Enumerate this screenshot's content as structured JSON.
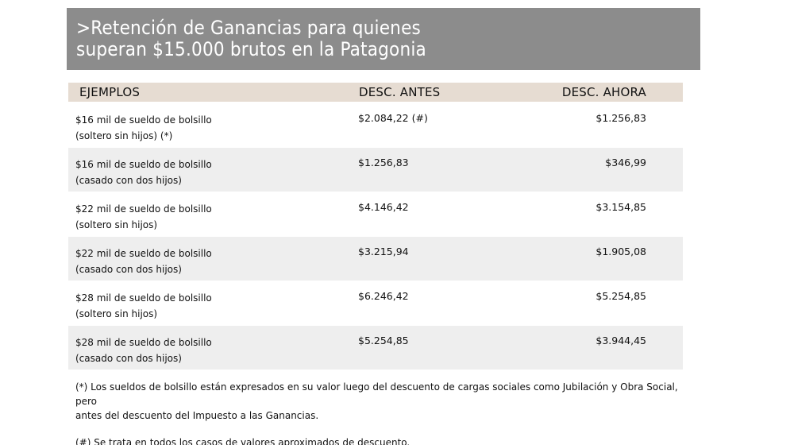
{
  "title": {
    "line1": ">Retención de Ganancias para quienes",
    "line2": "superan $15.000 brutos en la Patagonia"
  },
  "table": {
    "headers": {
      "ejemplos": "EJEMPLOS",
      "antes": "DESC. ANTES",
      "ahora": "DESC. AHORA"
    },
    "rows": [
      {
        "label1": "$16 mil de sueldo de bolsillo",
        "label2": "(soltero sin hijos) (*)",
        "antes": "$2.084,22 (#)",
        "ahora": "$1.256,83"
      },
      {
        "label1": "$16 mil de sueldo de bolsillo",
        "label2": "(casado con dos hijos)",
        "antes": "$1.256,83",
        "ahora": "$346,99"
      },
      {
        "label1": "$22 mil de sueldo de bolsillo",
        "label2": "(soltero sin hijos)",
        "antes": "$4.146,42",
        "ahora": "$3.154,85"
      },
      {
        "label1": "$22 mil de sueldo de bolsillo",
        "label2": "(casado con dos hijos)",
        "antes": "$3.215,94",
        "ahora": "$1.905,08"
      },
      {
        "label1": "$28 mil de sueldo de bolsillo",
        "label2": "(soltero sin hijos)",
        "antes": "$6.246,42",
        "ahora": "$5.254,85"
      },
      {
        "label1": "$28 mil de sueldo de bolsillo",
        "label2": "(casado con dos hijos)",
        "antes": "$5.254,85",
        "ahora": "$3.944,45"
      }
    ]
  },
  "notes": {
    "note1_line1": "(*) Los sueldos de bolsillo están expresados en su valor luego del descuento de cargas sociales como Jubilación y Obra Social, pero",
    "note1_line2": "antes del descuento del Impuesto a las Ganancias.",
    "note2": "(#) Se trata en todos los casos de valores aproximados de descuento."
  },
  "colors": {
    "title_band": "#8c8c8c",
    "header_band": "#e6dcd2",
    "row_shade": "#eeeeee"
  }
}
